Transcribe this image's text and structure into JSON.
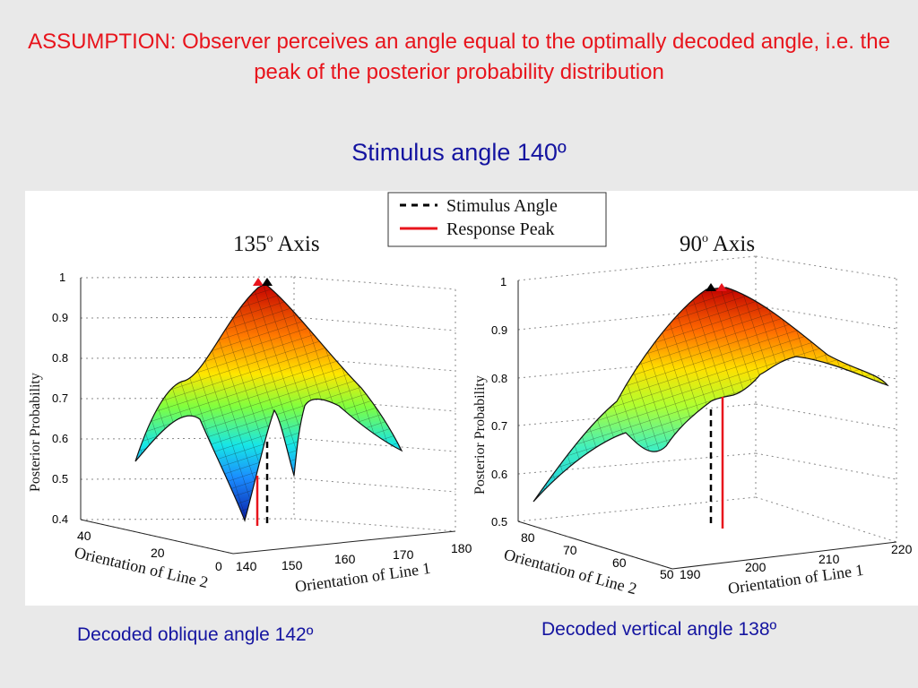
{
  "slide": {
    "assumption": "ASSUMPTION: Observer perceives an angle equal to the optimally decoded angle, i.e. the peak of the posterior probability distribution",
    "subtitle": "Stimulus angle 140º",
    "caption_left": "Decoded oblique angle 142º",
    "caption_right": "Decoded vertical angle 138º"
  },
  "legend": {
    "stimulus_label": "Stimulus Angle",
    "response_label": "Response Peak",
    "stimulus_color": "#000000",
    "response_color": "#e8141c"
  },
  "colors": {
    "title_red": "#e8141c",
    "caption_blue": "#1414a0",
    "background": "#e9e9e9",
    "surface_colormap": "jet"
  },
  "plots": [
    {
      "title_base": "135",
      "title_sup": "o",
      "title_rest": " Axis",
      "zlabel": "Posterior Probability",
      "xlabel": "Orientation of Line 1",
      "ylabel": "Orientation of Line 2",
      "zticks": [
        "1",
        "0.9",
        "0.8",
        "0.7",
        "0.6",
        "0.5",
        "0.4"
      ],
      "xticks": [
        "140",
        "150",
        "160",
        "170",
        "180"
      ],
      "yticks": [
        "40",
        "20",
        "0"
      ],
      "stimulus_angle": 140,
      "response_peak": 142
    },
    {
      "title_base": "90",
      "title_sup": "o",
      "title_rest": " Axis",
      "zlabel": "Posterior Probability",
      "xlabel": "Orientation of Line 1",
      "ylabel": "Orientation of Line 2",
      "zticks": [
        "1",
        "0.9",
        "0.8",
        "0.7",
        "0.6",
        "0.5"
      ],
      "xticks": [
        "190",
        "200",
        "210",
        "220"
      ],
      "yticks": [
        "80",
        "70",
        "60",
        "50"
      ],
      "stimulus_angle": 140,
      "response_peak": 138
    }
  ]
}
